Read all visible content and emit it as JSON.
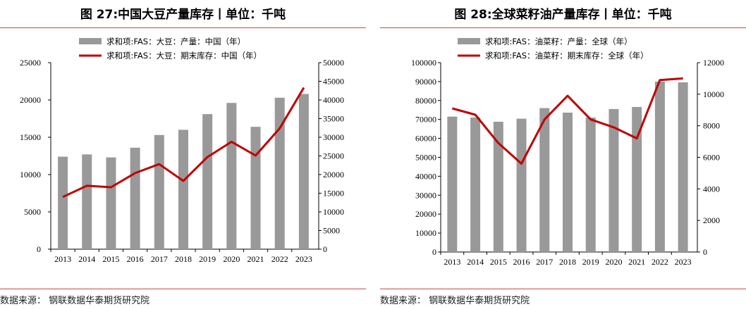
{
  "charts": [
    {
      "title": "图 27:中国大豆产量库存丨单位：千吨",
      "source": "数据来源：  钢联数据华泰期货研究院",
      "legend": {
        "bar": "求和项:FAS：大豆：产量：中国（年）",
        "line": "求和项:FAS：大豆：期末库存：中国（年）"
      },
      "y_left_ticks": [
        "0",
        "5000",
        "10000",
        "15000",
        "20000",
        "25000"
      ],
      "y_right_ticks": [
        "0",
        "5000",
        "10000",
        "15000",
        "20000",
        "25000",
        "30000",
        "35000",
        "40000",
        "45000",
        "50000"
      ]
    },
    {
      "title": "图 28:全球菜籽油产量库存丨单位：千吨",
      "source": "数据来源：  钢联数据华泰期货研究院",
      "legend": {
        "bar": "求和项:FAS：油菜籽：产量：全球（年）",
        "line": "求和项:FAS：油菜籽：期末库存：全球（年）"
      },
      "y_left_ticks": [
        "0",
        "10000",
        "20000",
        "30000",
        "40000",
        "50000",
        "60000",
        "70000",
        "80000",
        "90000",
        "100000"
      ],
      "y_right_ticks": [
        "0",
        "2000",
        "4000",
        "6000",
        "8000",
        "10000",
        "12000"
      ]
    }
  ],
  "colors": {
    "bar": "#999999",
    "line": "#c00000",
    "rule": "#c0504d"
  },
  "chart_data": [
    {
      "type": "bar+line",
      "title": "图 27:中国大豆产量库存丨单位：千吨",
      "categories": [
        "2013",
        "2014",
        "2015",
        "2016",
        "2017",
        "2018",
        "2019",
        "2020",
        "2021",
        "2022",
        "2023"
      ],
      "series": [
        {
          "name": "求和项:FAS：大豆：产量：中国（年）",
          "type": "bar",
          "axis": "left",
          "values": [
            12400,
            12700,
            12300,
            13600,
            15300,
            16000,
            18100,
            19600,
            16400,
            20300,
            20800
          ]
        },
        {
          "name": "求和项:FAS：大豆：期末库存：中国（年）",
          "type": "line",
          "axis": "right",
          "values": [
            14000,
            17000,
            16600,
            20400,
            22800,
            18300,
            24700,
            28800,
            25100,
            32400,
            43300
          ]
        }
      ],
      "ylim_left": [
        0,
        25000
      ],
      "ylim_right": [
        0,
        50000
      ],
      "legend_position": "top"
    },
    {
      "type": "bar+line",
      "title": "图 28:全球菜籽油产量库存丨单位：千吨",
      "categories": [
        "2013",
        "2014",
        "2015",
        "2016",
        "2017",
        "2018",
        "2019",
        "2020",
        "2021",
        "2022",
        "2023"
      ],
      "series": [
        {
          "name": "求和项:FAS：油菜籽：产量：全球（年）",
          "type": "bar",
          "axis": "left",
          "values": [
            71500,
            71000,
            68800,
            70400,
            76000,
            73600,
            71000,
            75500,
            76600,
            90000,
            89600
          ]
        },
        {
          "name": "求和项:FAS：油菜籽：期末库存：全球（年）",
          "type": "line",
          "axis": "right",
          "values": [
            9100,
            8700,
            6900,
            5600,
            8400,
            9900,
            8400,
            7900,
            7200,
            10900,
            11000
          ]
        }
      ],
      "ylim_left": [
        0,
        100000
      ],
      "ylim_right": [
        0,
        12000
      ],
      "legend_position": "top"
    }
  ]
}
